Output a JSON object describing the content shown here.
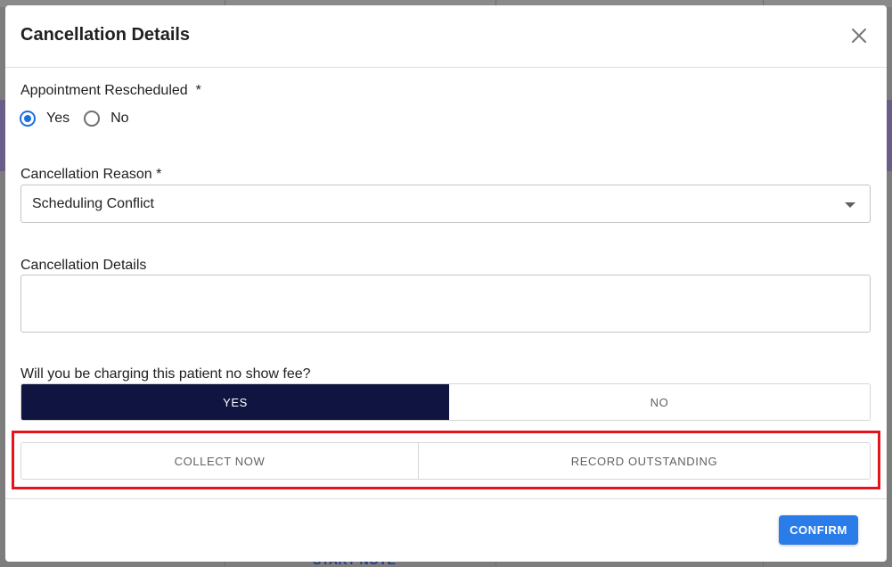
{
  "background": {
    "bottom_text": "START NOTE"
  },
  "modal": {
    "title": "Cancellation Details",
    "rescheduled": {
      "label": "Appointment Rescheduled  *",
      "options": [
        {
          "label": "Yes",
          "checked": true
        },
        {
          "label": "No",
          "checked": false
        }
      ]
    },
    "reason": {
      "label": "Cancellation Reason *",
      "selected_value": "Scheduling Conflict"
    },
    "details": {
      "label": "Cancellation Details",
      "value": ""
    },
    "no_show_fee": {
      "question": "Will you be charging this patient no show fee?",
      "yes_label": "YES",
      "no_label": "NO",
      "selected": "YES"
    },
    "collection": {
      "collect_now_label": "COLLECT NOW",
      "record_outstanding_label": "RECORD OUTSTANDING"
    },
    "confirm_label": "CONFIRM"
  },
  "colors": {
    "accent_blue": "#2a7de9",
    "selected_toggle": "#0f1440",
    "highlight_red": "#e5131b"
  }
}
